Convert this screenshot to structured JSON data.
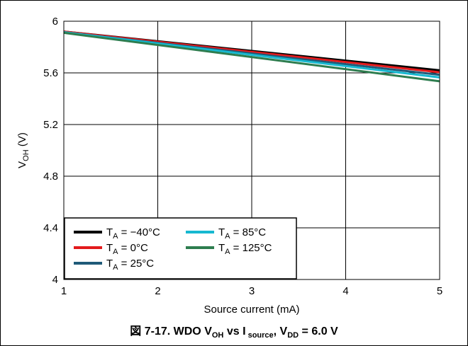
{
  "caption": {
    "prefix": "図 7-17. WDO V",
    "sub1": "OH",
    "mid1": " vs I",
    "sub2": " source",
    "mid2": ", V",
    "sub3": "DD",
    "suffix": " = 6.0 V"
  },
  "chart_data": {
    "type": "line",
    "xlabel": "Source current (mA)",
    "ylabel_main": "V",
    "ylabel_sub": "OH",
    "ylabel_unit": " (V)",
    "xlim": [
      1,
      5
    ],
    "ylim": [
      4,
      6
    ],
    "xticks": [
      "1",
      "2",
      "3",
      "4",
      "5"
    ],
    "yticks": [
      "4",
      "4.4",
      "4.8",
      "5.2",
      "5.6",
      "6"
    ],
    "grid": true,
    "legend_position": "bottom-left",
    "series": [
      {
        "label_main": "T",
        "label_sub": "A",
        "label_rest": " = −40°C",
        "color": "#000000",
        "x": [
          1,
          5
        ],
        "y": [
          5.92,
          5.62
        ]
      },
      {
        "label_main": "T",
        "label_sub": "A",
        "label_rest": " = 0°C",
        "color": "#e31a1c",
        "x": [
          1,
          5
        ],
        "y": [
          5.92,
          5.605
        ]
      },
      {
        "label_main": "T",
        "label_sub": "A",
        "label_rest": " = 25°C",
        "color": "#1f5a78",
        "x": [
          1,
          5
        ],
        "y": [
          5.915,
          5.585
        ]
      },
      {
        "label_main": "T",
        "label_sub": "A",
        "label_rest": " = 85°C",
        "color": "#17b8d0",
        "x": [
          1,
          5
        ],
        "y": [
          5.915,
          5.565
        ]
      },
      {
        "label_main": "T",
        "label_sub": "A",
        "label_rest": " = 125°C",
        "color": "#2e7d4f",
        "x": [
          1,
          5
        ],
        "y": [
          5.91,
          5.535
        ]
      }
    ]
  }
}
